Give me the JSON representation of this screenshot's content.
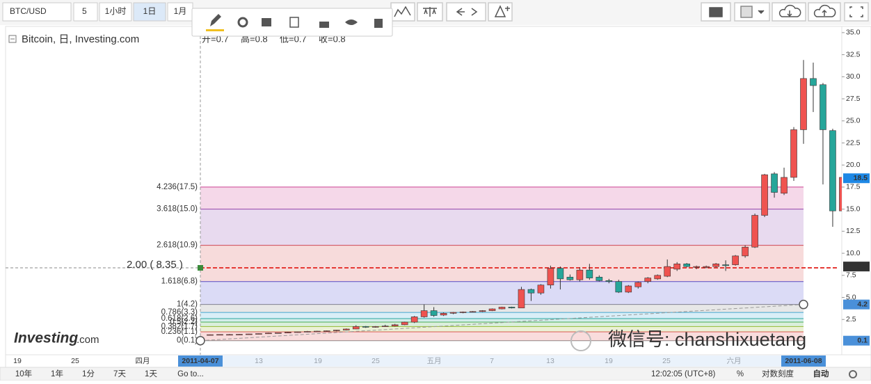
{
  "toolbar": {
    "symbol": "BTC/USD",
    "interval_input": "5",
    "buttons": [
      "1小时",
      "1日",
      "1月"
    ]
  },
  "legend": {
    "title": "Bitcoin, 日, Investing.com",
    "ohlc": [
      "开=0.7",
      "高=0.8",
      "低=0.7",
      "收=0.8"
    ]
  },
  "chart_data": {
    "type": "candlestick",
    "open": [
      0.75,
      0.78,
      0.8,
      0.8,
      0.82,
      0.86,
      0.9,
      0.96,
      1.0,
      1.05,
      1.1,
      1.15,
      1.18,
      1.22,
      1.3,
      1.42,
      1.7,
      1.62,
      1.7,
      1.76,
      1.9,
      2.2,
      2.8,
      3.5,
      3.0,
      3.2,
      3.3,
      3.35,
      3.4,
      3.5,
      3.7,
      3.9,
      3.8,
      5.9,
      5.5,
      6.4,
      8.3,
      7.3,
      7.0,
      8.1,
      7.3,
      6.9,
      6.8,
      5.6,
      6.2,
      6.8,
      7.1,
      7.4,
      8.2,
      8.8,
      8.4,
      8.4,
      8.5,
      8.7,
      8.7,
      9.7,
      10.7,
      14.3,
      19.0,
      16.8,
      18.6,
      24.0,
      29.8,
      29.1,
      23.9,
      14.8
    ],
    "high": [
      0.8,
      0.8,
      0.85,
      0.85,
      0.88,
      0.92,
      1.0,
      1.02,
      1.1,
      1.12,
      1.2,
      1.22,
      1.26,
      1.32,
      1.48,
      1.85,
      1.76,
      1.75,
      1.9,
      2.0,
      2.25,
      2.9,
      4.2,
      3.9,
      3.3,
      3.35,
      3.4,
      3.45,
      3.55,
      3.75,
      3.95,
      3.95,
      6.2,
      6.0,
      6.5,
      8.6,
      8.5,
      7.6,
      8.4,
      8.8,
      7.5,
      7.1,
      7.0,
      6.4,
      6.8,
      7.3,
      7.6,
      9.3,
      9.0,
      8.9,
      8.6,
      8.6,
      8.9,
      9.2,
      9.8,
      10.9,
      14.5,
      19.0,
      19.2,
      19.7,
      24.3,
      31.9,
      31.6,
      29.3,
      24.1,
      25.0
    ],
    "low": [
      0.7,
      0.75,
      0.75,
      0.75,
      0.78,
      0.82,
      0.86,
      0.92,
      0.96,
      1.0,
      1.05,
      1.1,
      1.12,
      1.16,
      1.26,
      1.4,
      1.55,
      1.58,
      1.65,
      1.7,
      1.85,
      2.1,
      2.7,
      2.8,
      2.9,
      3.1,
      3.2,
      3.3,
      3.35,
      3.45,
      3.65,
      3.75,
      3.8,
      4.6,
      5.3,
      6.0,
      5.9,
      6.9,
      6.8,
      7.0,
      6.8,
      6.6,
      5.5,
      5.5,
      6.0,
      6.6,
      7.0,
      7.3,
      8.0,
      8.4,
      8.2,
      8.3,
      8.4,
      8.0,
      8.6,
      9.5,
      10.6,
      14.1,
      16.3,
      16.6,
      18.2,
      22.4,
      26.0,
      17.8,
      13.0,
      10.7
    ],
    "close": [
      0.78,
      0.8,
      0.8,
      0.82,
      0.86,
      0.9,
      0.96,
      1.0,
      1.05,
      1.1,
      1.15,
      1.18,
      1.22,
      1.3,
      1.42,
      1.7,
      1.62,
      1.7,
      1.76,
      1.9,
      2.2,
      2.8,
      3.5,
      2.95,
      3.2,
      3.3,
      3.35,
      3.4,
      3.5,
      3.7,
      3.9,
      3.8,
      5.9,
      5.5,
      6.4,
      8.3,
      7.1,
      7.0,
      8.1,
      7.2,
      6.9,
      6.8,
      5.6,
      6.3,
      6.7,
      7.2,
      7.5,
      8.5,
      8.8,
      8.5,
      8.5,
      8.5,
      8.8,
      8.6,
      9.7,
      10.7,
      14.3,
      18.9,
      16.9,
      18.6,
      24.0,
      29.8,
      29.0,
      24.0,
      14.8,
      18.6
    ],
    "up_color": "#ef5350",
    "down_color": "#26a69a",
    "ylim": [
      -1.5,
      35.7
    ],
    "yticks": [
      2.5,
      {
        "value": 5,
        "label": "5.0"
      },
      7.5,
      {
        "value": 10,
        "label": "10.0"
      },
      12.5,
      {
        "value": 15,
        "label": "15.0"
      },
      17.5,
      {
        "value": 20,
        "label": "20.0"
      },
      22.5,
      {
        "value": 25,
        "label": "25.0"
      },
      27.5,
      {
        "value": 30,
        "label": "30.0"
      },
      32.5,
      {
        "value": 35,
        "label": "35.0"
      }
    ],
    "x_labels": [
      "19",
      "25",
      "四月",
      "13",
      "19",
      "25",
      "五月",
      "7",
      "13",
      "19",
      "25",
      "六月"
    ],
    "fibonacci": [
      {
        "label": "0(0.1)",
        "value": 0.1,
        "color": "#888888"
      },
      {
        "label": "0.236(1.1)",
        "value": 1.1,
        "color": "#e05050"
      },
      {
        "label": "0.382(1.7)",
        "value": 1.7,
        "color": "#9bbb30"
      },
      {
        "label": "0.5(2.2)",
        "value": 2.2,
        "color": "#4caf50"
      },
      {
        "label": "0.618(2.6)",
        "value": 2.6,
        "color": "#26a69a"
      },
      {
        "label": "0.786(3.3)",
        "value": 3.3,
        "color": "#3fa9d6"
      },
      {
        "label": "1(4.2)",
        "value": 4.2,
        "color": "#888888"
      },
      {
        "label": "1.618(6.8)",
        "value": 6.8,
        "color": "#4a4ad0"
      },
      {
        "label": "2.618(10.9)",
        "value": 10.9,
        "color": "#d84a4a"
      },
      {
        "label": "3.618(15.0)",
        "value": 15.0,
        "color": "#8e44ad"
      },
      {
        "label": "4.236(17.5)",
        "value": 17.5,
        "color": "#cc3d91"
      }
    ],
    "horizontal_line": {
      "label": "2.00 ( 8.35 )",
      "value": 8.35,
      "color": "#e53935"
    },
    "trend_line": {
      "x": [
        "2011-04-07",
        "2011-06-08"
      ],
      "values": [
        0.1,
        4.2
      ]
    },
    "price_tags": [
      18.5,
      8.5,
      4.2,
      0.1
    ]
  },
  "watermark": {
    "wechat": "微信号: chanshixuetang",
    "logo": "Investing",
    "logo_suffix": ".com"
  },
  "bottom_bar": {
    "ranges": [
      "10年",
      "1年",
      "1分",
      "7天",
      "1天",
      "Go to..."
    ],
    "clock": "12:02:05 (UTC+8)",
    "percent": "%",
    "log_scale": "对数刻度",
    "auto": "自动"
  }
}
